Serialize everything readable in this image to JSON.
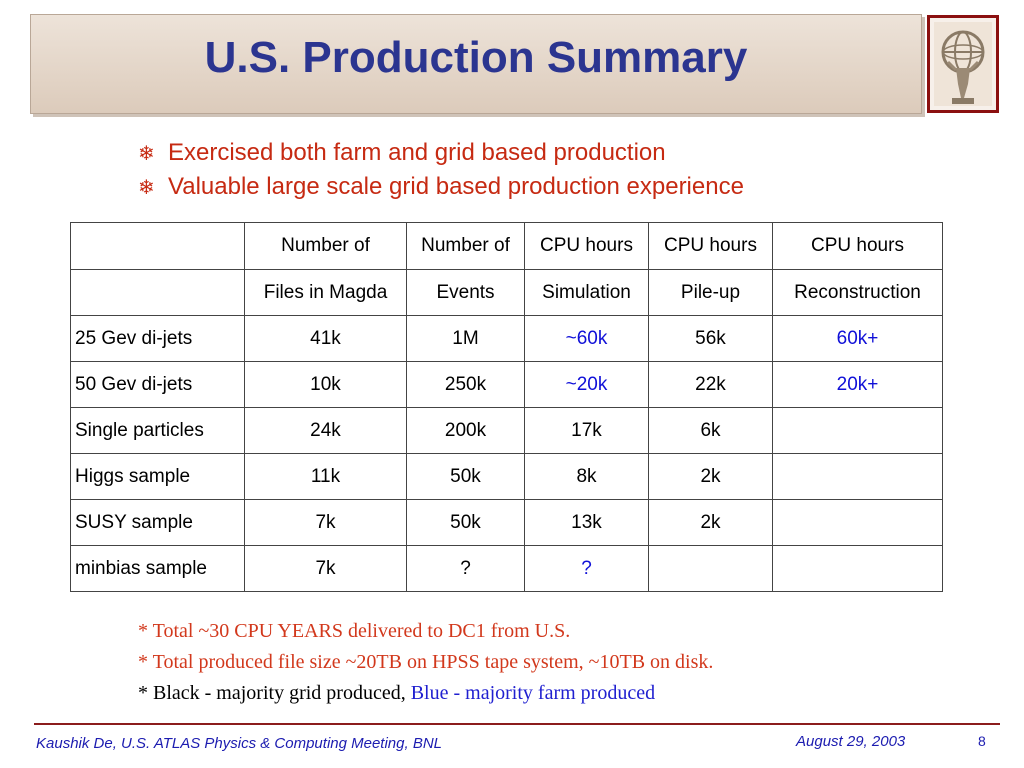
{
  "slide": {
    "title": "U.S. Production Summary",
    "bullets": [
      {
        "icon": "snowflake-icon",
        "glyph": "❄",
        "text": "Exercised both farm and grid based production"
      },
      {
        "icon": "snowflake-icon",
        "glyph": "❄",
        "text": "Valuable large scale grid based production experience"
      }
    ]
  },
  "table": {
    "header_row1": [
      "",
      "Number of",
      "Number of",
      "CPU hours",
      "CPU hours",
      "CPU hours"
    ],
    "header_row2": [
      "",
      "Files in Magda",
      "Events",
      "Simulation",
      "Pile-up",
      "Reconstruction"
    ],
    "rows": [
      [
        "25 Gev di-jets",
        "41k",
        "1M",
        "~60k",
        "56k",
        "60k+"
      ],
      [
        "50 Gev di-jets",
        "10k",
        "250k",
        "~20k",
        "22k",
        "20k+"
      ],
      [
        "Single particles",
        "24k",
        "200k",
        "17k",
        "6k",
        ""
      ],
      [
        "Higgs sample",
        "11k",
        "50k",
        "8k",
        "2k",
        ""
      ],
      [
        "SUSY sample",
        "7k",
        "50k",
        "13k",
        "2k",
        ""
      ],
      [
        "minbias sample",
        "7k",
        "?",
        "?",
        "",
        ""
      ]
    ],
    "colors": {
      "black": "#000000",
      "blue": "#1010d8"
    }
  },
  "notes": {
    "line1": "* Total ~30 CPU YEARS delivered to DC1 from U.S.",
    "line2": "* Total produced file size ~20TB on HPSS tape system, ~10TB on disk.",
    "line3_black": "* Black - majority grid produced,",
    "line3_blue": "Blue - majority farm produced"
  },
  "footer": {
    "left": "Kaushik De, U.S. ATLAS Physics & Computing Meeting, BNL",
    "date": "August 29, 2003",
    "page": "8"
  },
  "colors": {
    "title": "#2b3590",
    "bullet_text": "#c62a12",
    "note_red": "#d2381c",
    "footer_text": "#1c1cb0",
    "footer_line": "#8b1c1c",
    "banner": "#e3d6ca"
  }
}
